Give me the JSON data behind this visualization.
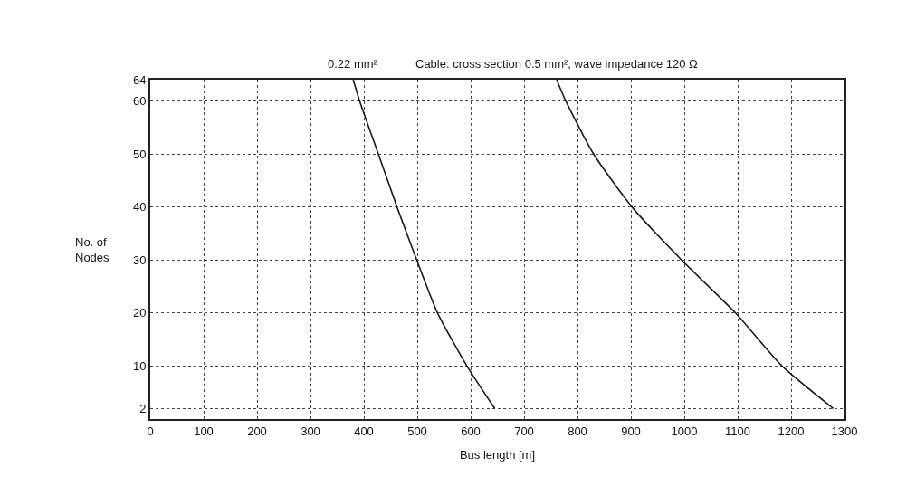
{
  "chart_data": {
    "type": "line",
    "xlabel": "Bus length [m]",
    "ylabel": "No. of\nNodes",
    "series": [
      {
        "name": "0.22 mm²",
        "color": "#1a1a1a",
        "x": [
          380,
          392,
          427,
          462,
          499,
          538,
          593,
          645
        ],
        "values": [
          64,
          60,
          50,
          40,
          30,
          20,
          10,
          2
        ]
      },
      {
        "name": "Cable: cross section 0.5 mm², wave impedance 120 Ω",
        "color": "#1a1a1a",
        "x": [
          761,
          778,
          830,
          902,
          995,
          1096,
          1183,
          1279
        ],
        "values": [
          64,
          60,
          50,
          40,
          30,
          20,
          10,
          2
        ]
      }
    ],
    "xlim": [
      0,
      1300
    ],
    "xticks": [
      0,
      100,
      200,
      300,
      400,
      500,
      600,
      700,
      800,
      900,
      1000,
      1100,
      1200,
      1300
    ],
    "ylim": [
      0,
      64
    ],
    "yticks": [
      2,
      10,
      20,
      30,
      40,
      50,
      60,
      64
    ],
    "grid": true,
    "legend": false,
    "marker": "none",
    "line_style": "solid"
  }
}
